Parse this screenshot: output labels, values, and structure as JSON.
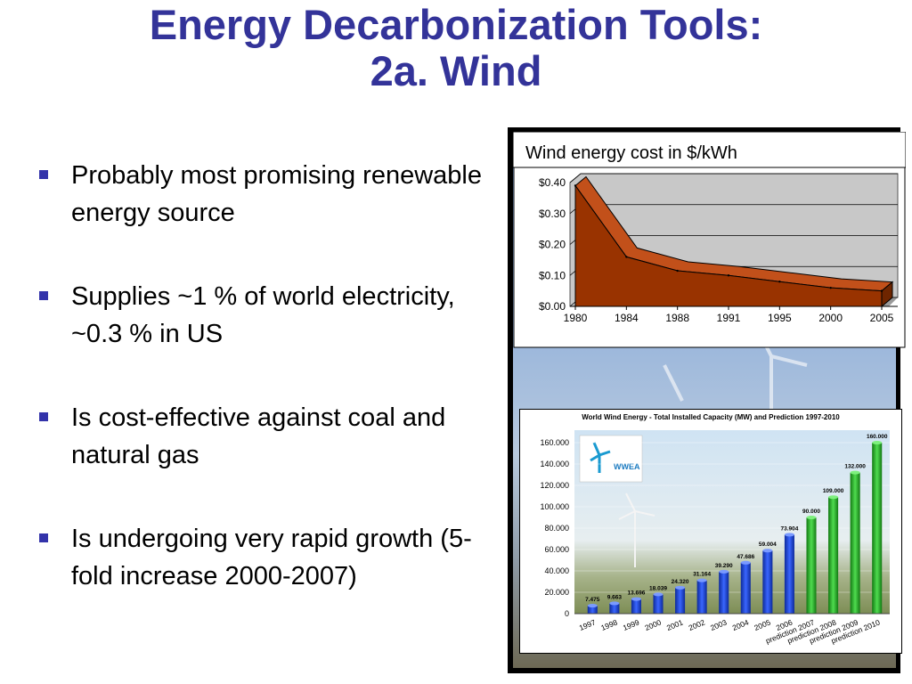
{
  "slide": {
    "title_line1": "Energy Decarbonization Tools:",
    "title_line2": "2a. Wind",
    "bullets": [
      "Probably most promising renewable energy source",
      "Supplies ~1 % of world electricity, ~0.3 % in US",
      "Is cost-effective against coal and natural gas",
      "Is undergoing very rapid growth (5-fold increase 2000-2007)"
    ],
    "colors": {
      "title": "#333399",
      "bullet_marker": "#3333aa"
    }
  },
  "chart_data": [
    {
      "type": "area",
      "title": "Wind energy cost in $/kWh",
      "categories": [
        "1980",
        "1984",
        "1988",
        "1991",
        "1995",
        "2000",
        "2005"
      ],
      "values": [
        0.39,
        0.16,
        0.115,
        0.1,
        0.08,
        0.06,
        0.05
      ],
      "yticks": [
        "$0.00",
        "$0.10",
        "$0.20",
        "$0.30",
        "$0.40"
      ],
      "ylim": [
        0,
        0.4
      ],
      "grid": true,
      "legend": "none",
      "colors": {
        "fill": "#993300",
        "top": "#c2501a",
        "wall": "#c8c8c8"
      }
    },
    {
      "type": "bar",
      "title": "World Wind Energy - Total Installed Capacity (MW) and Prediction 1997-2010",
      "logo_text": "WWEA",
      "categories": [
        "1997",
        "1998",
        "1999",
        "2000",
        "2001",
        "2002",
        "2003",
        "2004",
        "2005",
        "2006",
        "prediction 2007",
        "prediction 2008",
        "prediction 2009",
        "prediction 2010"
      ],
      "values": [
        7475,
        9663,
        13696,
        18039,
        24320,
        31164,
        39290,
        47686,
        59004,
        73904,
        90000,
        109000,
        132000,
        160000
      ],
      "value_labels": [
        "7.475",
        "9.663",
        "13.696",
        "18.039",
        "24.320",
        "31.164",
        "39.290",
        "47.686",
        "59.004",
        "73.904",
        "90.000",
        "109.000",
        "132.000",
        "160.000"
      ],
      "yticks": [
        "0",
        "20.000",
        "40.000",
        "60.000",
        "80.000",
        "100.000",
        "120.000",
        "140.000",
        "160.000"
      ],
      "ylim": [
        0,
        160000
      ],
      "series_colors": {
        "actual": "#1a3fd0",
        "prediction": "#22aa22"
      },
      "prediction_start_index": 10
    }
  ]
}
